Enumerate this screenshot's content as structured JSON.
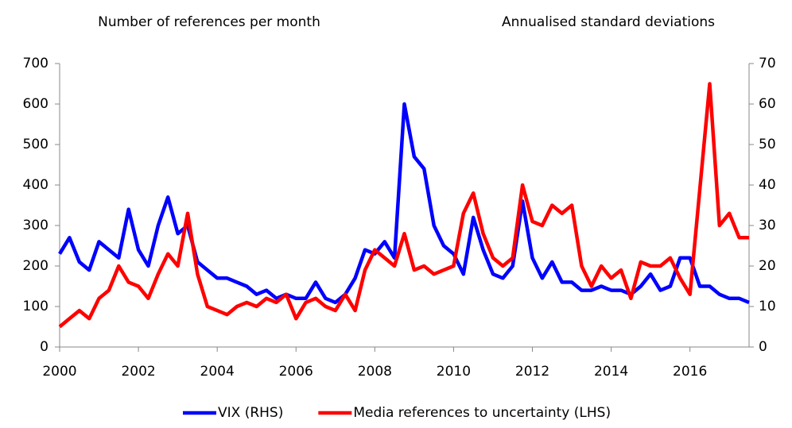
{
  "chart_data": {
    "type": "line",
    "y_label": "Number of references per month",
    "y2_label": "Annualised standard deviations",
    "x": [
      2000,
      2000.25,
      2000.5,
      2000.75,
      2001,
      2001.25,
      2001.5,
      2001.75,
      2002,
      2002.25,
      2002.5,
      2002.75,
      2003,
      2003.25,
      2003.5,
      2003.75,
      2004,
      2004.25,
      2004.5,
      2004.75,
      2005,
      2005.25,
      2005.5,
      2005.75,
      2006,
      2006.25,
      2006.5,
      2006.75,
      2007,
      2007.25,
      2007.5,
      2007.75,
      2008,
      2008.25,
      2008.5,
      2008.75,
      2009,
      2009.25,
      2009.5,
      2009.75,
      2010,
      2010.25,
      2010.5,
      2010.75,
      2011,
      2011.25,
      2011.5,
      2011.75,
      2012,
      2012.25,
      2012.5,
      2012.75,
      2013,
      2013.25,
      2013.5,
      2013.75,
      2014,
      2014.25,
      2014.5,
      2014.75,
      2015,
      2015.25,
      2015.5,
      2015.75,
      2016,
      2016.25,
      2016.5,
      2016.75,
      2017,
      2017.25,
      2017.5
    ],
    "series": [
      {
        "name": "VIX (RHS)",
        "color": "#0000ff",
        "axis": "y2",
        "values": [
          23,
          27,
          21,
          19,
          26,
          24,
          22,
          34,
          24,
          20,
          30,
          37,
          28,
          30,
          21,
          19,
          17,
          17,
          16,
          15,
          13,
          14,
          12,
          13,
          12,
          12,
          16,
          12,
          11,
          13,
          17,
          24,
          23,
          26,
          22,
          60,
          47,
          44,
          30,
          25,
          23,
          18,
          32,
          24,
          18,
          17,
          20,
          36,
          22,
          17,
          21,
          16,
          16,
          14,
          14,
          15,
          14,
          14,
          13,
          15,
          18,
          14,
          15,
          22,
          22,
          15,
          15,
          13,
          12,
          12,
          11
        ]
      },
      {
        "name": "Media references to uncertainty (LHS)",
        "color": "#ff0000",
        "values": [
          50,
          70,
          90,
          70,
          120,
          140,
          200,
          160,
          150,
          120,
          180,
          230,
          200,
          330,
          180,
          100,
          90,
          80,
          100,
          110,
          100,
          120,
          110,
          130,
          70,
          110,
          120,
          100,
          90,
          130,
          90,
          190,
          240,
          220,
          200,
          280,
          190,
          200,
          180,
          190,
          200,
          330,
          380,
          280,
          220,
          200,
          220,
          400,
          310,
          300,
          350,
          330,
          350,
          200,
          150,
          200,
          170,
          190,
          120,
          210,
          200,
          200,
          220,
          170,
          130,
          390,
          650,
          300,
          330,
          270,
          270
        ]
      }
    ],
    "xlim": [
      2000,
      2017.5
    ],
    "xticks": [
      2000,
      2002,
      2004,
      2006,
      2008,
      2010,
      2012,
      2014,
      2016
    ],
    "ylim": [
      0,
      700
    ],
    "yticks": [
      0,
      100,
      200,
      300,
      400,
      500,
      600,
      700
    ],
    "y2lim": [
      0,
      70
    ],
    "y2ticks": [
      0,
      10,
      20,
      30,
      40,
      50,
      60,
      70
    ],
    "grid": false,
    "legend": "bottom"
  }
}
